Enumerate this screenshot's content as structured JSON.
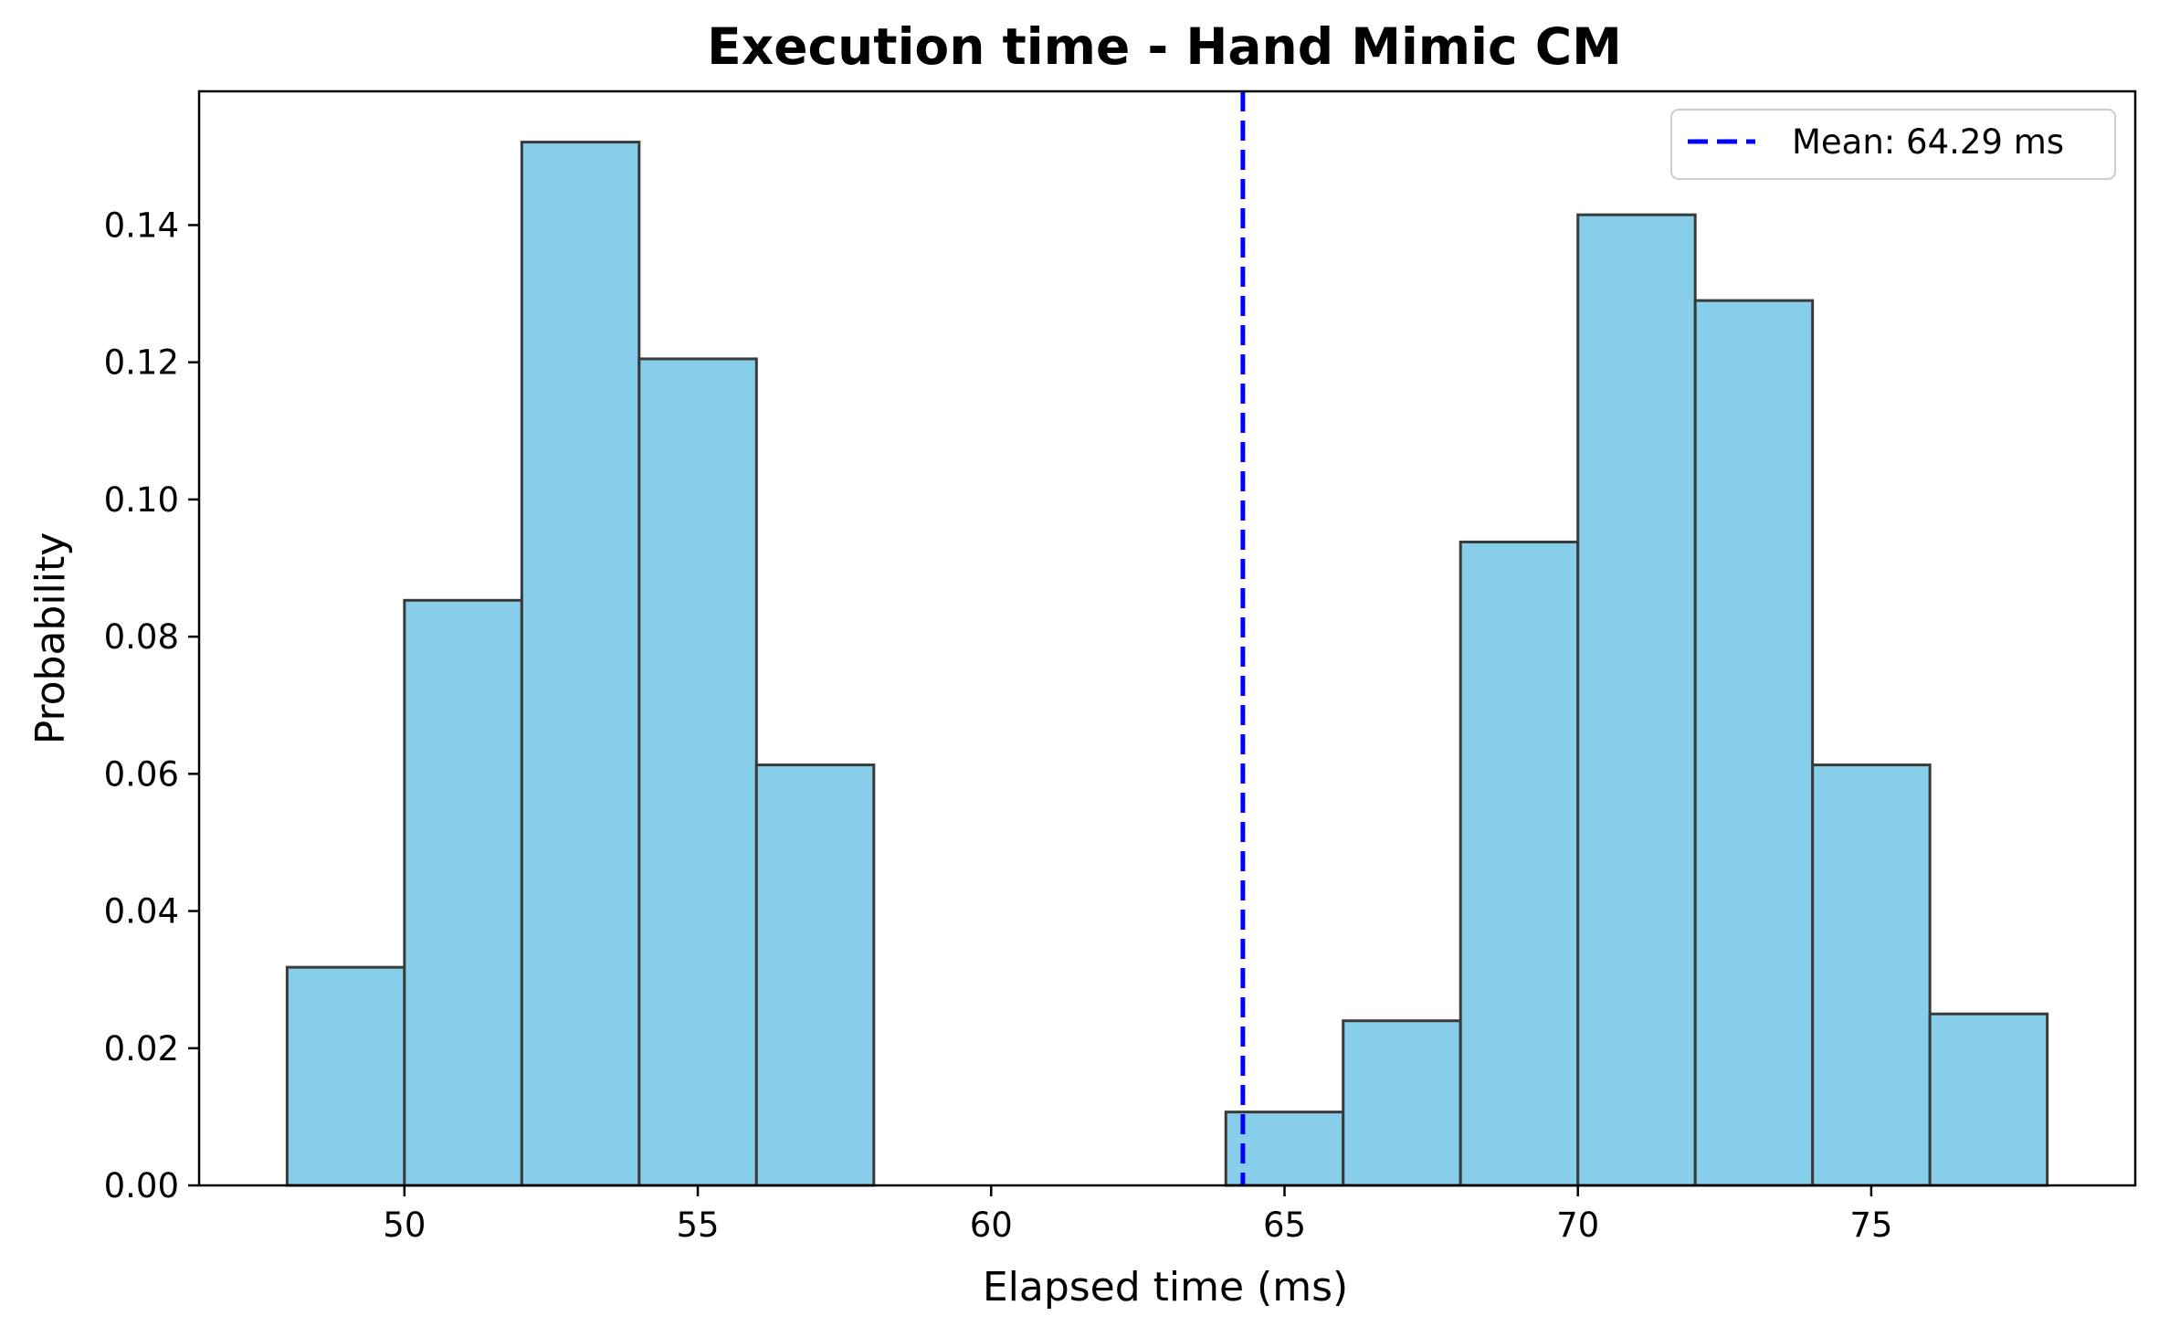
{
  "chart_data": {
    "type": "bar",
    "title": "Execution time - Hand Mimic CM",
    "xlabel": "Elapsed time (ms)",
    "ylabel": "Probability",
    "xlim": [
      46.5,
      79.5
    ],
    "ylim": [
      0,
      0.1595
    ],
    "xticks": [
      50,
      55,
      60,
      65,
      70,
      75
    ],
    "yticks": [
      0.0,
      0.02,
      0.04,
      0.06,
      0.08,
      0.1,
      0.12,
      0.14
    ],
    "xtick_labels": [
      "50",
      "55",
      "60",
      "65",
      "70",
      "75"
    ],
    "ytick_labels": [
      "0.00",
      "0.02",
      "0.04",
      "0.06",
      "0.08",
      "0.10",
      "0.12",
      "0.14"
    ],
    "bins": [
      {
        "x0": 48,
        "x1": 50,
        "value": 0.0318
      },
      {
        "x0": 50,
        "x1": 52,
        "value": 0.0853
      },
      {
        "x0": 52,
        "x1": 54,
        "value": 0.1521
      },
      {
        "x0": 54,
        "x1": 56,
        "value": 0.1205
      },
      {
        "x0": 56,
        "x1": 58,
        "value": 0.0613
      },
      {
        "x0": 58,
        "x1": 60,
        "value": 0
      },
      {
        "x0": 60,
        "x1": 62,
        "value": 0
      },
      {
        "x0": 62,
        "x1": 64,
        "value": 0
      },
      {
        "x0": 64,
        "x1": 66,
        "value": 0.0107
      },
      {
        "x0": 66,
        "x1": 68,
        "value": 0.024
      },
      {
        "x0": 68,
        "x1": 70,
        "value": 0.0938
      },
      {
        "x0": 70,
        "x1": 72,
        "value": 0.1415
      },
      {
        "x0": 72,
        "x1": 74,
        "value": 0.129
      },
      {
        "x0": 74,
        "x1": 76,
        "value": 0.0613
      },
      {
        "x0": 76,
        "x1": 78,
        "value": 0.025
      }
    ],
    "mean_line": {
      "x": 64.29,
      "label": "Mean: 64.29 ms",
      "color": "#0000ff",
      "style": "dashed"
    },
    "bar_color": "#87ceeb",
    "edge_color": "#3a3a3a",
    "legend": {
      "position": "top-right",
      "entries": [
        "Mean: 64.29 ms"
      ]
    },
    "grid": false
  }
}
